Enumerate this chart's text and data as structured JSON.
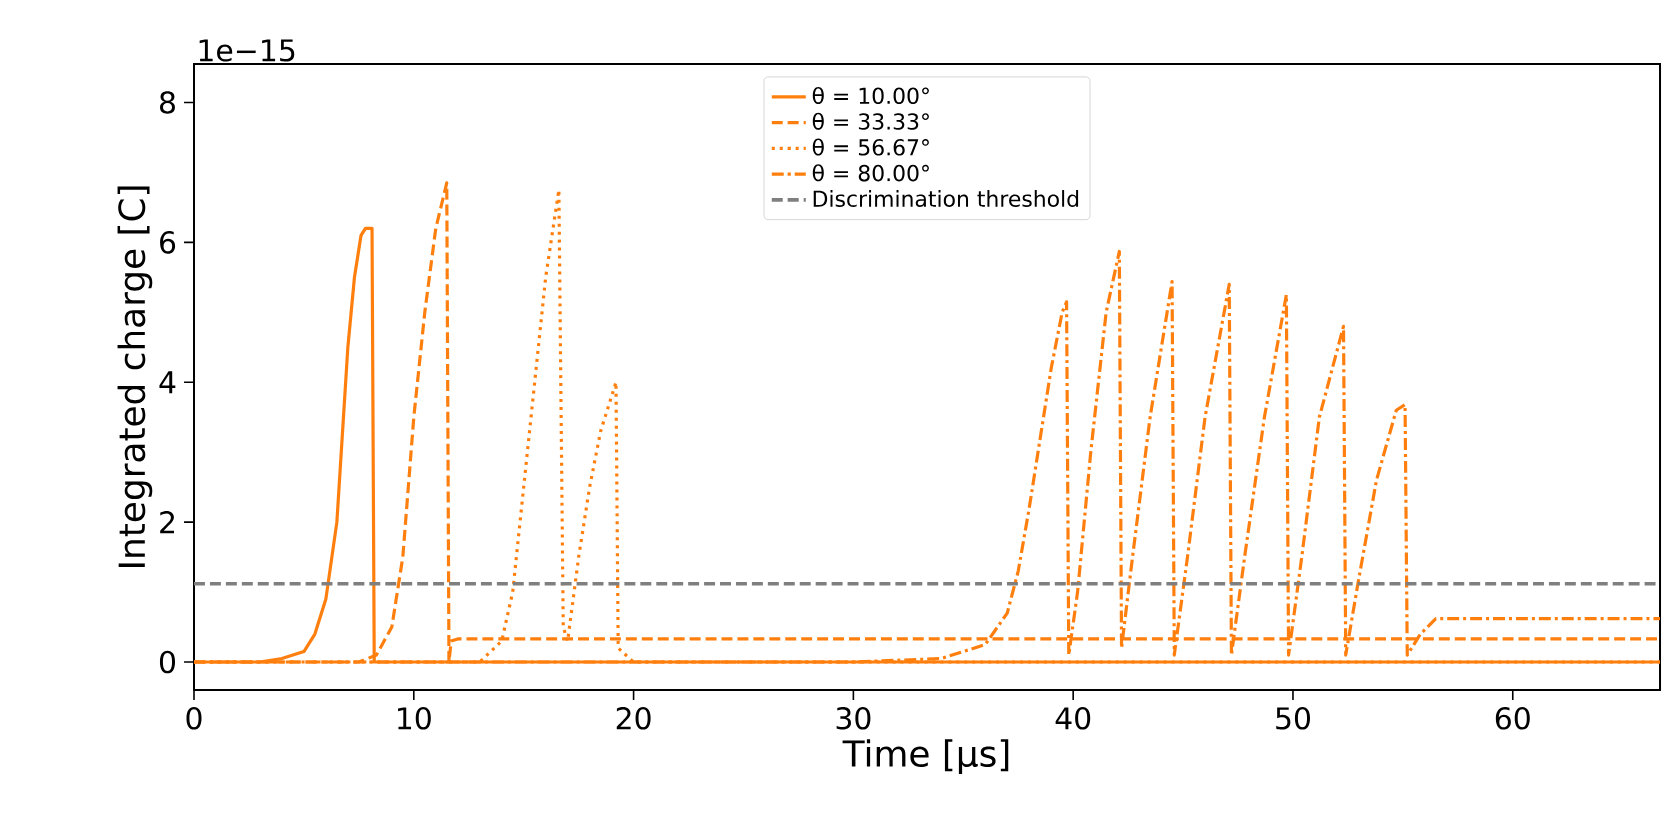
{
  "chart_data": {
    "type": "line",
    "xlabel": "Time [µs]",
    "ylabel": "Integrated charge [C]",
    "annotations": [
      "1e−15"
    ],
    "xlim": [
      0,
      66.7
    ],
    "ylim": [
      -0.4,
      8.55
    ],
    "xticks": [
      0,
      10,
      20,
      30,
      40,
      50,
      60
    ],
    "yticks": [
      0,
      2,
      4,
      6,
      8
    ],
    "grid": false,
    "legend": "top",
    "marker": "none",
    "series": [
      {
        "name": "θ = 10.00°",
        "color": "#ff7f0e",
        "line_style": "solid",
        "x": [
          0,
          3,
          4,
          5,
          5.5,
          6,
          6.5,
          7,
          7.3,
          7.6,
          7.8,
          8.1,
          8.2,
          66.7
        ],
        "values": [
          0,
          0,
          0.05,
          0.15,
          0.4,
          0.9,
          2,
          4.5,
          5.5,
          6.1,
          6.2,
          6.2,
          0,
          0
        ]
      },
      {
        "name": "θ = 33.33°",
        "color": "#ff7f0e",
        "line_style": "dashed",
        "x": [
          0,
          7.5,
          8.3,
          9,
          9.5,
          10,
          10.5,
          11,
          11.5,
          11.6,
          11.7,
          12,
          66.7
        ],
        "values": [
          0,
          0,
          0.1,
          0.5,
          1.5,
          3.5,
          5,
          6.2,
          6.85,
          0,
          0.3,
          0.33,
          0.33
        ]
      },
      {
        "name": "θ = 56.67°",
        "color": "#ff7f0e",
        "line_style": "dotted",
        "x": [
          0,
          13,
          14,
          14.5,
          15,
          15.5,
          16,
          16.6,
          16.8,
          17,
          17.5,
          18,
          18.5,
          19,
          19.2,
          19.3,
          20,
          66.7
        ],
        "values": [
          0,
          0,
          0.3,
          1,
          2.5,
          4,
          5.5,
          6.75,
          0.5,
          0.3,
          1.5,
          2.5,
          3.3,
          3.8,
          4.0,
          0.2,
          0,
          0
        ]
      },
      {
        "name": "θ = 80.00°",
        "color": "#ff7f0e",
        "line_style": "dashdot",
        "x": [
          0,
          30,
          34,
          36,
          37,
          37.5,
          38,
          38.5,
          39,
          39.5,
          39.7,
          39.8,
          40.2,
          40.8,
          41.5,
          42.1,
          42.2,
          42.7,
          43.5,
          44.5,
          44.6,
          45.2,
          46,
          47.1,
          47.2,
          47.8,
          48.7,
          49.7,
          49.8,
          50.4,
          51.2,
          52.3,
          52.4,
          53,
          53.8,
          54.7,
          55.1,
          55.2,
          55.8,
          56.5,
          66.7
        ],
        "values": [
          0,
          0,
          0.05,
          0.25,
          0.7,
          1.3,
          2.2,
          3.2,
          4.2,
          5.0,
          5.15,
          0.1,
          1.0,
          3,
          5,
          5.87,
          0.2,
          1.5,
          3.5,
          5.44,
          0.1,
          1.5,
          3.5,
          5.4,
          0.1,
          1.5,
          3.5,
          5.25,
          0.1,
          1.5,
          3.5,
          4.8,
          0.1,
          1.2,
          2.6,
          3.6,
          3.68,
          0.1,
          0.4,
          0.62,
          0.62
        ]
      }
    ],
    "ref_lines": [
      {
        "axis": "y",
        "value": 1.12,
        "label": "Discrimination threshold",
        "color": "#7f7f7f",
        "line_style": "dashed"
      }
    ]
  }
}
